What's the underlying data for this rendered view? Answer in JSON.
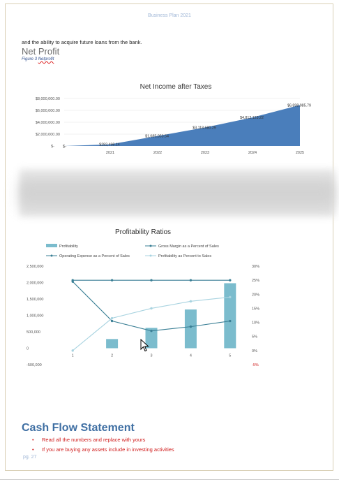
{
  "header": {
    "text": "Business Plan 2021"
  },
  "body": {
    "line": "and the ability to acquire future loans from the bank.",
    "section_title": "Net Profit",
    "caption_prefix": "Figure 3 ",
    "caption_word": "Netprofit"
  },
  "chart_data": [
    {
      "type": "area",
      "title": "Net Income after Taxes",
      "categories": [
        "2021",
        "2022",
        "2023",
        "2024",
        "2025"
      ],
      "series": [
        {
          "values": [
            282498.14,
            1685053.54,
            3118680.29,
            4812123.22,
            6898985.79
          ]
        }
      ],
      "data_labels": [
        "$282,498.14",
        "$1,685,053.54",
        "$3,118,680.29",
        "$4,812,123.22",
        "$6,898,985.79"
      ],
      "y_ticks": [
        "$-",
        "$2,000,000.00",
        "$4,000,000.00",
        "$6,000,000.00",
        "$8,000,000.00"
      ],
      "y_tick_values": [
        0,
        2000000,
        4000000,
        6000000,
        8000000
      ],
      "x_origin_label": "$-",
      "ylim": [
        0,
        8000000
      ],
      "color": "#4a7ebb",
      "grid": true
    },
    {
      "type": "bar",
      "title": "Profitability Ratios",
      "categories": [
        "1",
        "2",
        "3",
        "4",
        "5"
      ],
      "legend_placement": "top",
      "series": [
        {
          "name": "Profitability",
          "type": "bar",
          "axis": "left",
          "color": "#7bbccd",
          "values": [
            0,
            280000,
            620000,
            1180000,
            1980000
          ]
        },
        {
          "name": "Gross Margin as a Percent of Sales",
          "type": "line",
          "axis": "right",
          "color": "#3a7f95",
          "values": [
            25,
            25,
            25,
            25,
            25
          ]
        },
        {
          "name": "Operating Expense as a Percent of Sales",
          "type": "line",
          "axis": "right",
          "color": "#3a7f95",
          "values": [
            24.5,
            10.5,
            7,
            8.5,
            10.5
          ]
        },
        {
          "name": "Profitability as Percent to Sales",
          "type": "line",
          "axis": "right",
          "color": "#a8d3e0",
          "values": [
            0,
            11.5,
            15,
            17.5,
            19
          ]
        }
      ],
      "left_ticks": [
        "-500,000",
        "0",
        "500,000",
        "1,000,000",
        "1,500,000",
        "2,000,000",
        "2,500,000"
      ],
      "left_tick_values": [
        -500000,
        0,
        500000,
        1000000,
        1500000,
        2000000,
        2500000
      ],
      "right_ticks": [
        "-5%",
        "0%",
        "5%",
        "10%",
        "15%",
        "20%",
        "25%",
        "30%"
      ],
      "right_tick_values": [
        -5,
        0,
        5,
        10,
        15,
        20,
        25,
        30
      ],
      "ylim_left": [
        -500000,
        2500000
      ],
      "ylim_right": [
        -5,
        30
      ]
    }
  ],
  "cash_flow": {
    "title": "Cash Flow Statement",
    "bullets": [
      "Read all the numbers and replace with yours",
      "If you are buying any assets include in investing activities"
    ],
    "bullet_glyph": "•"
  },
  "footer": {
    "page": "pg. 27"
  }
}
